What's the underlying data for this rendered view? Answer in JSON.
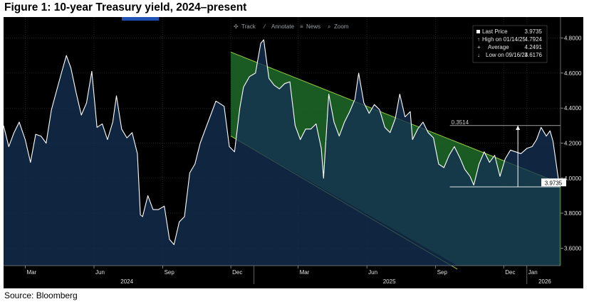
{
  "figure": {
    "title": "Figure 1: 10-year Treasury yield, 2024–present",
    "source": "Source: Bloomberg"
  },
  "toolbar": {
    "items": [
      {
        "label": "Track",
        "icon": "crosshair-icon"
      },
      {
        "label": "Annotate",
        "icon": "pencil-icon"
      },
      {
        "label": "News",
        "icon": "news-icon"
      },
      {
        "label": "Zoom",
        "icon": "magnifier-icon"
      }
    ]
  },
  "legend": {
    "last_price_label": "Last Price",
    "last_price_value": "3.9735",
    "high_label": "High on 01/14/25",
    "high_value": "4.7924",
    "average_label": "Average",
    "average_value": "4.2491",
    "low_label": "Low on 09/16/24",
    "low_value": "3.6176"
  },
  "annotations": {
    "range_label": "0.3514",
    "last_price_tag": "3.9735"
  },
  "colors": {
    "background": "#000000",
    "area_fill": "#142f52",
    "channel_fill": "#1e6b2a",
    "channel_line": "#9ccc3c",
    "series_line": "#ffffff",
    "grid": "#3a3a3a"
  },
  "chart_data": {
    "type": "area",
    "title": "10-year Treasury yield, 2024–present",
    "xlabel": "",
    "ylabel": "",
    "y_ticks": [
      "3.6000",
      "3.8000",
      "4.0000",
      "4.2000",
      "4.4000",
      "4.6000",
      "4.8000"
    ],
    "ylim": [
      3.5,
      4.92
    ],
    "x_ticks": [
      "Mar",
      "Jun",
      "Sep",
      "Dec",
      "Mar",
      "Jun",
      "Sep",
      "Dec",
      "Jan"
    ],
    "x_year_labels": [
      "2024",
      "2025",
      "2026"
    ],
    "xlim": [
      "2024-02-01",
      "2026-02-15"
    ],
    "grid": true,
    "series": [
      {
        "name": "10-year Treasury yield",
        "points": [
          [
            "2024-02-01",
            4.3
          ],
          [
            "2024-02-08",
            4.18
          ],
          [
            "2024-02-15",
            4.26
          ],
          [
            "2024-02-22",
            4.32
          ],
          [
            "2024-03-01",
            4.22
          ],
          [
            "2024-03-08",
            4.09
          ],
          [
            "2024-03-15",
            4.25
          ],
          [
            "2024-03-22",
            4.24
          ],
          [
            "2024-03-29",
            4.2
          ],
          [
            "2024-04-05",
            4.39
          ],
          [
            "2024-04-12",
            4.5
          ],
          [
            "2024-04-19",
            4.61
          ],
          [
            "2024-04-25",
            4.7
          ],
          [
            "2024-05-01",
            4.63
          ],
          [
            "2024-05-08",
            4.49
          ],
          [
            "2024-05-15",
            4.36
          ],
          [
            "2024-05-22",
            4.43
          ],
          [
            "2024-05-29",
            4.61
          ],
          [
            "2024-06-05",
            4.29
          ],
          [
            "2024-06-12",
            4.31
          ],
          [
            "2024-06-19",
            4.22
          ],
          [
            "2024-06-26",
            4.32
          ],
          [
            "2024-07-01",
            4.47
          ],
          [
            "2024-07-08",
            4.28
          ],
          [
            "2024-07-15",
            4.23
          ],
          [
            "2024-07-22",
            4.26
          ],
          [
            "2024-07-29",
            4.14
          ],
          [
            "2024-08-02",
            3.79
          ],
          [
            "2024-08-05",
            3.78
          ],
          [
            "2024-08-12",
            3.9
          ],
          [
            "2024-08-19",
            3.82
          ],
          [
            "2024-08-26",
            3.82
          ],
          [
            "2024-09-03",
            3.84
          ],
          [
            "2024-09-10",
            3.65
          ],
          [
            "2024-09-16",
            3.62
          ],
          [
            "2024-09-23",
            3.75
          ],
          [
            "2024-09-30",
            3.78
          ],
          [
            "2024-10-07",
            4.03
          ],
          [
            "2024-10-14",
            4.08
          ],
          [
            "2024-10-21",
            4.2
          ],
          [
            "2024-10-28",
            4.28
          ],
          [
            "2024-11-04",
            4.36
          ],
          [
            "2024-11-11",
            4.44
          ],
          [
            "2024-11-15",
            4.43
          ],
          [
            "2024-11-22",
            4.41
          ],
          [
            "2024-11-29",
            4.18
          ],
          [
            "2024-12-06",
            4.15
          ],
          [
            "2024-12-13",
            4.4
          ],
          [
            "2024-12-18",
            4.52
          ],
          [
            "2024-12-26",
            4.58
          ],
          [
            "2025-01-03",
            4.6
          ],
          [
            "2025-01-10",
            4.77
          ],
          [
            "2025-01-14",
            4.79
          ],
          [
            "2025-01-21",
            4.57
          ],
          [
            "2025-01-28",
            4.53
          ],
          [
            "2025-02-04",
            4.51
          ],
          [
            "2025-02-11",
            4.54
          ],
          [
            "2025-02-18",
            4.55
          ],
          [
            "2025-02-25",
            4.3
          ],
          [
            "2025-03-04",
            4.22
          ],
          [
            "2025-03-11",
            4.28
          ],
          [
            "2025-03-18",
            4.28
          ],
          [
            "2025-03-25",
            4.31
          ],
          [
            "2025-04-01",
            4.17
          ],
          [
            "2025-04-04",
            4.0
          ],
          [
            "2025-04-11",
            4.48
          ],
          [
            "2025-04-18",
            4.32
          ],
          [
            "2025-04-25",
            4.24
          ],
          [
            "2025-05-02",
            4.32
          ],
          [
            "2025-05-09",
            4.38
          ],
          [
            "2025-05-16",
            4.45
          ],
          [
            "2025-05-21",
            4.6
          ],
          [
            "2025-05-28",
            4.43
          ],
          [
            "2025-06-04",
            4.37
          ],
          [
            "2025-06-11",
            4.42
          ],
          [
            "2025-06-18",
            4.39
          ],
          [
            "2025-06-25",
            4.29
          ],
          [
            "2025-07-02",
            4.26
          ],
          [
            "2025-07-09",
            4.34
          ],
          [
            "2025-07-15",
            4.48
          ],
          [
            "2025-07-22",
            4.35
          ],
          [
            "2025-07-29",
            4.38
          ],
          [
            "2025-08-01",
            4.22
          ],
          [
            "2025-08-08",
            4.28
          ],
          [
            "2025-08-15",
            4.32
          ],
          [
            "2025-08-22",
            4.26
          ],
          [
            "2025-08-29",
            4.23
          ],
          [
            "2025-09-05",
            4.08
          ],
          [
            "2025-09-12",
            4.06
          ],
          [
            "2025-09-19",
            4.13
          ],
          [
            "2025-09-26",
            4.18
          ],
          [
            "2025-10-03",
            4.12
          ],
          [
            "2025-10-10",
            4.05
          ],
          [
            "2025-10-17",
            4.01
          ],
          [
            "2025-10-22",
            3.96
          ],
          [
            "2025-10-29",
            4.08
          ],
          [
            "2025-11-05",
            4.15
          ],
          [
            "2025-11-12",
            4.09
          ],
          [
            "2025-11-19",
            4.13
          ],
          [
            "2025-11-26",
            4.01
          ],
          [
            "2025-12-03",
            4.11
          ],
          [
            "2025-12-10",
            4.16
          ],
          [
            "2025-12-17",
            4.15
          ],
          [
            "2025-12-24",
            4.14
          ],
          [
            "2026-01-01",
            4.17
          ],
          [
            "2026-01-08",
            4.18
          ],
          [
            "2026-01-14",
            4.22
          ],
          [
            "2026-01-20",
            4.29
          ],
          [
            "2026-01-27",
            4.24
          ],
          [
            "2026-02-01",
            4.27
          ],
          [
            "2026-02-05",
            4.21
          ],
          [
            "2026-02-09",
            4.09
          ],
          [
            "2026-02-13",
            3.97
          ]
        ]
      }
    ],
    "channel": {
      "upper": [
        [
          "2024-12-01",
          4.72
        ],
        [
          "2026-02-15",
          3.97
        ]
      ],
      "lower": [
        [
          "2024-12-01",
          4.24
        ],
        [
          "2025-09-30",
          3.48
        ]
      ]
    },
    "range_marker": {
      "low": 3.95,
      "high": 4.3,
      "from": "2025-09-20",
      "to": "2026-02-15",
      "at": "2025-12-20"
    },
    "last_value": 3.9735
  }
}
